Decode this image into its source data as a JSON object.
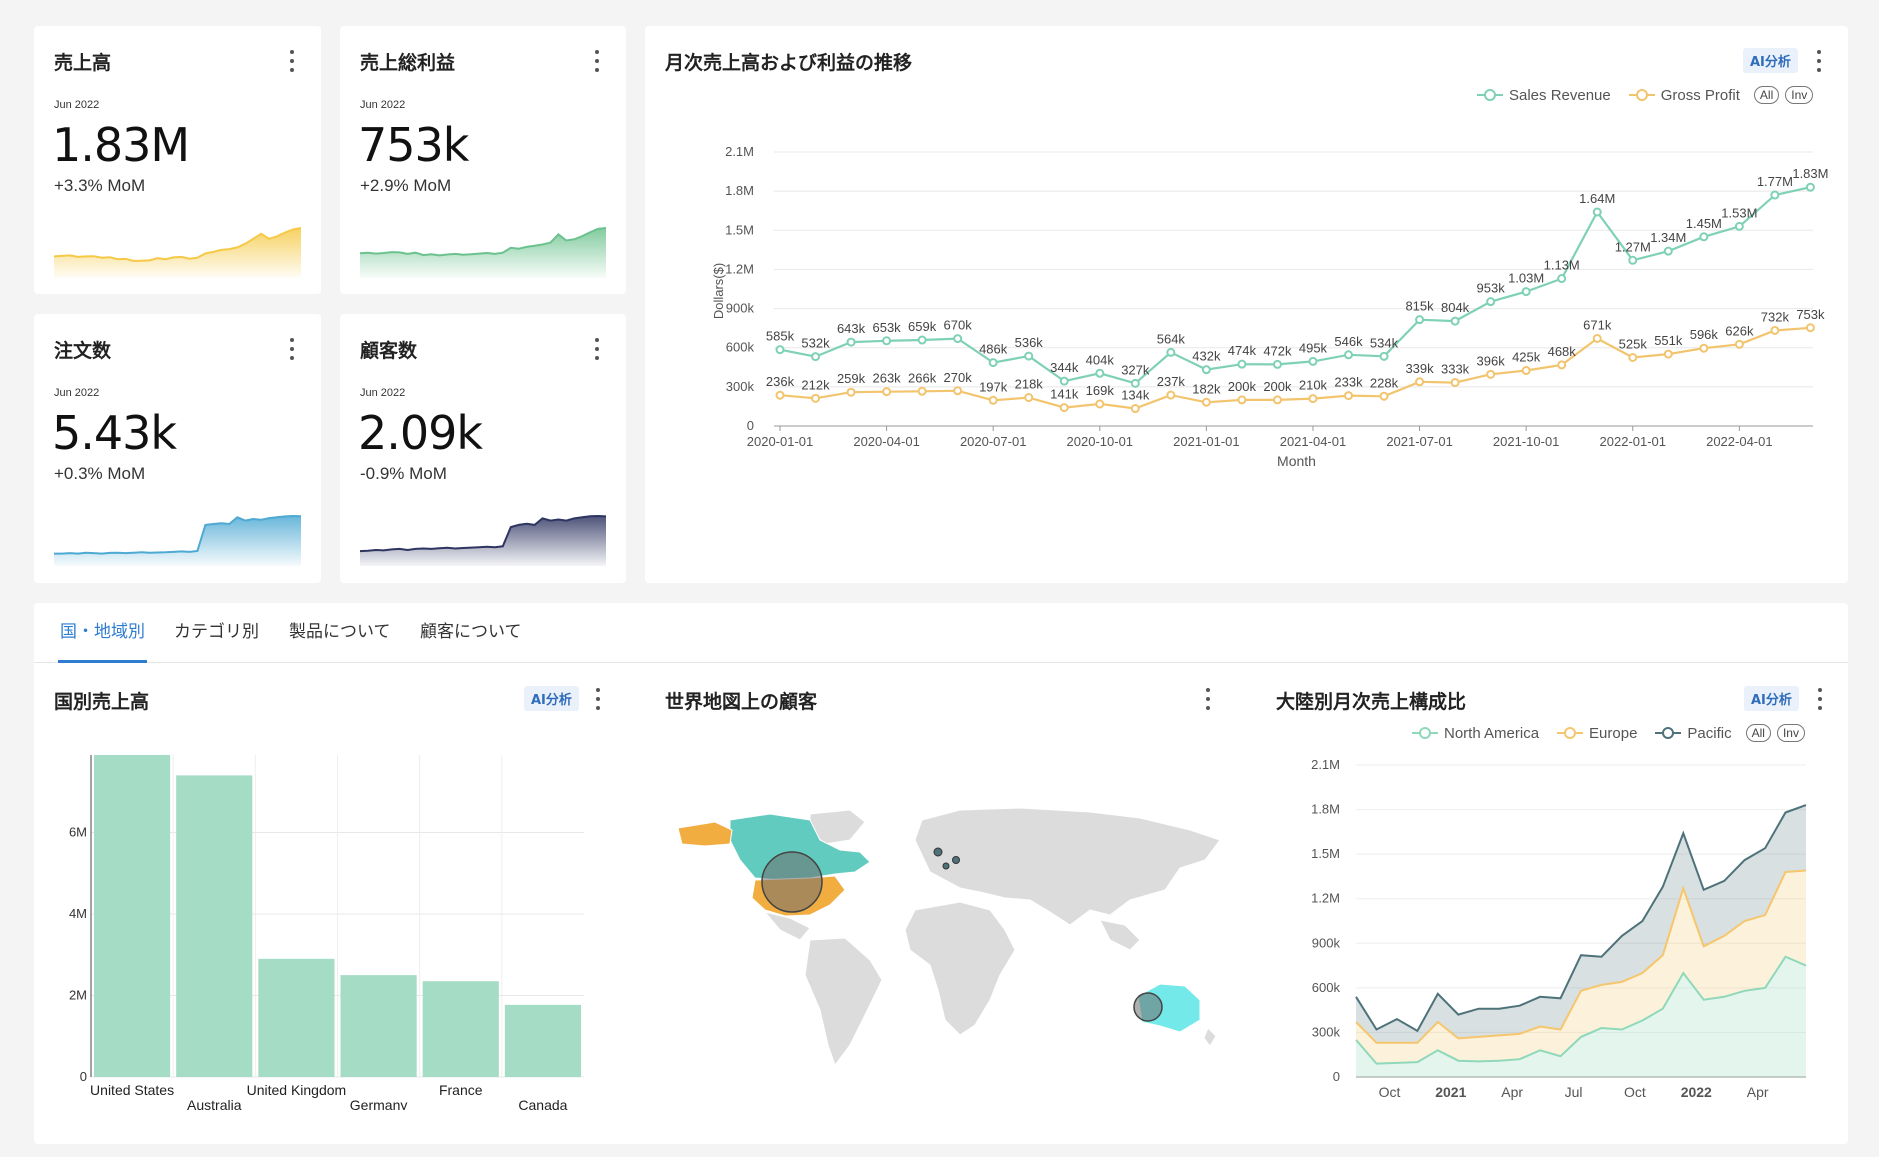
{
  "kpis": [
    {
      "title": "売上高",
      "date": "Jun 2022",
      "value": "1.83M",
      "mom": "+3.3% MoM",
      "color": "#f5c945",
      "spark": [
        7,
        7.2,
        7.4,
        6.8,
        7,
        7.1,
        6.5,
        6.7,
        5.9,
        6,
        5.2,
        5.3,
        5.4,
        6.3,
        5.9,
        6.6,
        6.8,
        6.1,
        6.5,
        8.2,
        8.8,
        9.6,
        9.9,
        10.6,
        12,
        14,
        16,
        14,
        15,
        16.5,
        17.7,
        18.3
      ]
    },
    {
      "title": "売上総利益",
      "date": "Jun 2022",
      "value": "753k",
      "mom": "+2.9% MoM",
      "color": "#6cc28e",
      "spark": [
        6.8,
        7,
        6.7,
        6.9,
        7.2,
        7.1,
        6.6,
        7,
        6.2,
        6.5,
        6.1,
        6.4,
        6.6,
        6.3,
        6.5,
        6.7,
        6.9,
        6.6,
        7,
        8.6,
        8.3,
        8.9,
        9.3,
        9.7,
        10.3,
        13,
        11,
        11.4,
        12.4,
        13.7,
        14.8,
        15.1
      ]
    },
    {
      "title": "注文数",
      "date": "Jun 2022",
      "value": "5.43k",
      "mom": "+0.3% MoM",
      "color": "#4ea9d3",
      "spark": [
        1,
        1,
        1.05,
        1,
        1.1,
        1.05,
        1,
        1.08,
        1.1,
        1.05,
        1.1,
        1.15,
        1.1,
        1.12,
        1.15,
        1.2,
        1.25,
        1.2,
        1.3,
        4.4,
        4.5,
        4.6,
        4.5,
        5.3,
        4.9,
        5.1,
        5.0,
        5.2,
        5.3,
        5.4,
        5.45,
        5.43
      ]
    },
    {
      "title": "顧客数",
      "date": "Jun 2022",
      "value": "2.09k",
      "mom": "-0.9% MoM",
      "color": "#2e3561",
      "spark": [
        0.5,
        0.52,
        0.55,
        0.53,
        0.58,
        0.6,
        0.55,
        0.6,
        0.62,
        0.6,
        0.63,
        0.65,
        0.62,
        0.64,
        0.66,
        0.68,
        0.7,
        0.68,
        0.72,
        1.6,
        1.7,
        1.75,
        1.7,
        2.0,
        1.9,
        1.95,
        1.9,
        2.0,
        2.05,
        2.1,
        2.11,
        2.09
      ]
    }
  ],
  "trend": {
    "title": "月次売上高および利益の推移",
    "ai_label": "AI分析",
    "legend_all": "All",
    "legend_inv": "Inv",
    "xlabel": "Month",
    "ylabel": "Dollars($)",
    "y_ticks": [
      "0",
      "300k",
      "600k",
      "900k",
      "1.2M",
      "1.5M",
      "1.8M",
      "2.1M"
    ],
    "x_ticks": [
      "2020-01-01",
      "2020-04-01",
      "2020-07-01",
      "2020-10-01",
      "2021-01-01",
      "2021-04-01",
      "2021-07-01",
      "2021-10-01",
      "2022-01-01",
      "2022-04-01"
    ]
  },
  "tabs": [
    "国・地域別",
    "カテゴリ別",
    "製品について",
    "顧客について"
  ],
  "country_panel": {
    "title": "国別売上高",
    "ai_label": "AI分析"
  },
  "map_panel": {
    "title": "世界地図上の顧客"
  },
  "continent_panel": {
    "title": "大陸別月次売上構成比",
    "ai_label": "AI分析",
    "legend_all": "All",
    "legend_inv": "Inv",
    "y_ticks": [
      "0",
      "300k",
      "600k",
      "900k",
      "1.2M",
      "1.5M",
      "1.8M",
      "2.1M"
    ],
    "x_ticks": [
      {
        "label": "Oct",
        "i": 1,
        "bold": false
      },
      {
        "label": "2021",
        "i": 4,
        "bold": true
      },
      {
        "label": "Apr",
        "i": 7,
        "bold": false
      },
      {
        "label": "Jul",
        "i": 10,
        "bold": false
      },
      {
        "label": "Oct",
        "i": 13,
        "bold": false
      },
      {
        "label": "2022",
        "i": 16,
        "bold": true
      },
      {
        "label": "Apr",
        "i": 19,
        "bold": false
      }
    ]
  },
  "colors": {
    "revenue": "#7fd1b4",
    "profit": "#f2c46d",
    "na": "#8fd8b9",
    "europe": "#f5c66d",
    "pacific": "#4e7279",
    "bar": "#a5dcc5"
  },
  "chart_data": [
    {
      "type": "line",
      "title": "月次売上高および利益の推移",
      "xlabel": "Month",
      "ylabel": "Dollars($)",
      "ylim": [
        0,
        2100000
      ],
      "x": [
        "2020-01",
        "2020-02",
        "2020-03",
        "2020-04",
        "2020-05",
        "2020-06",
        "2020-07",
        "2020-08",
        "2020-09",
        "2020-10",
        "2020-11",
        "2020-12",
        "2021-01",
        "2021-02",
        "2021-03",
        "2021-04",
        "2021-05",
        "2021-06",
        "2021-07",
        "2021-08",
        "2021-09",
        "2021-10",
        "2021-11",
        "2021-12",
        "2022-01",
        "2022-02",
        "2022-03",
        "2022-04",
        "2022-05",
        "2022-06"
      ],
      "series": [
        {
          "name": "Sales Revenue",
          "values": [
            585000,
            532000,
            643000,
            653000,
            659000,
            670000,
            486000,
            536000,
            344000,
            404000,
            327000,
            564000,
            432000,
            474000,
            472000,
            495000,
            546000,
            534000,
            815000,
            804000,
            953000,
            1030000,
            1130000,
            1640000,
            1270000,
            1340000,
            1450000,
            1530000,
            1770000,
            1830000
          ],
          "labels": [
            "585k",
            "532k",
            "643k",
            "653k",
            "659k",
            "670k",
            "486k",
            "536k",
            "344k",
            "404k",
            "327k",
            "564k",
            "432k",
            "474k",
            "472k",
            "495k",
            "546k",
            "534k",
            "815k",
            "804k",
            "953k",
            "1.03M",
            "1.13M",
            "1.64M",
            "1.27M",
            "1.34M",
            "1.45M",
            "1.53M",
            "1.77M",
            "1.83M"
          ]
        },
        {
          "name": "Gross Profit",
          "values": [
            236000,
            212000,
            259000,
            263000,
            266000,
            270000,
            197000,
            218000,
            141000,
            169000,
            134000,
            237000,
            182000,
            200000,
            200000,
            210000,
            233000,
            228000,
            339000,
            333000,
            396000,
            425000,
            468000,
            671000,
            525000,
            551000,
            596000,
            626000,
            732000,
            753000
          ],
          "labels": [
            "236k",
            "212k",
            "259k",
            "263k",
            "266k",
            "270k",
            "197k",
            "218k",
            "141k",
            "169k",
            "134k",
            "237k",
            "182k",
            "200k",
            "200k",
            "210k",
            "233k",
            "228k",
            "339k",
            "333k",
            "396k",
            "425k",
            "468k",
            "671k",
            "525k",
            "551k",
            "596k",
            "626k",
            "732k",
            "753k"
          ]
        }
      ]
    },
    {
      "type": "bar",
      "title": "国別売上高",
      "categories": [
        "United States",
        "Australia",
        "United Kingdom",
        "Germany",
        "France",
        "Canada"
      ],
      "values": [
        7900000,
        7400000,
        2900000,
        2500000,
        2350000,
        1770000
      ],
      "y_ticks": [
        "0",
        "2M",
        "4M",
        "6M"
      ],
      "ylim": [
        0,
        7900000
      ]
    },
    {
      "type": "area",
      "title": "大陸別月次売上構成比",
      "ylim": [
        0,
        2100000
      ],
      "series": [
        {
          "name": "North America",
          "values": [
            250000,
            90000,
            95000,
            100000,
            180000,
            110000,
            105000,
            110000,
            120000,
            180000,
            140000,
            270000,
            330000,
            320000,
            380000,
            460000,
            700000,
            520000,
            540000,
            580000,
            600000,
            810000,
            750000
          ]
        },
        {
          "name": "Europe",
          "values": [
            370000,
            230000,
            230000,
            230000,
            370000,
            260000,
            270000,
            280000,
            290000,
            340000,
            320000,
            580000,
            620000,
            640000,
            700000,
            820000,
            1270000,
            880000,
            950000,
            1050000,
            1090000,
            1380000,
            1390000
          ]
        },
        {
          "name": "Pacific",
          "values": [
            540000,
            320000,
            390000,
            310000,
            560000,
            420000,
            460000,
            460000,
            480000,
            540000,
            530000,
            820000,
            810000,
            950000,
            1050000,
            1280000,
            1640000,
            1260000,
            1320000,
            1460000,
            1540000,
            1780000,
            1830000
          ]
        }
      ]
    }
  ]
}
